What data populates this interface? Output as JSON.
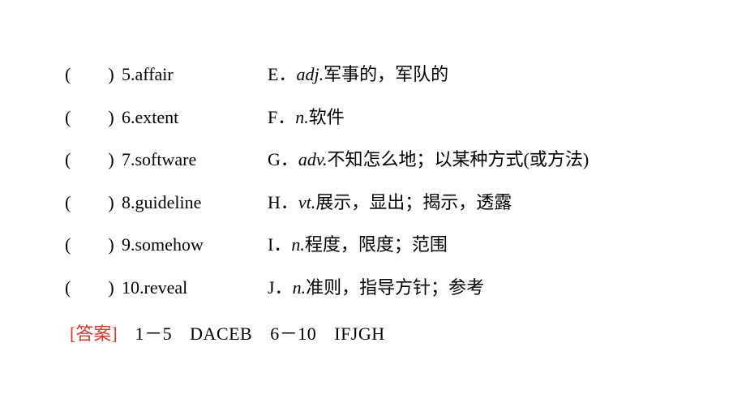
{
  "rows": [
    {
      "num": "5",
      "word": "affair",
      "marker": "E．",
      "pos": "adj.",
      "def": "军事的，军队的"
    },
    {
      "num": "6",
      "word": "extent",
      "marker": "F．",
      "pos": "n.",
      "def": "软件"
    },
    {
      "num": "7",
      "word": "software",
      "marker": "G．",
      "pos": "adv.",
      "def": "不知怎么地；以某种方式(或方法)"
    },
    {
      "num": "8",
      "word": "guideline",
      "marker": "H．",
      "pos": "vt.",
      "def": "展示，显出；揭示，透露"
    },
    {
      "num": "9",
      "word": "somehow",
      "marker": "I．",
      "pos": "n.",
      "def": "程度，限度；范围"
    },
    {
      "num": "10",
      "word": "reveal",
      "marker": "J．",
      "pos": "n.",
      "def": "准则，指导方针；参考"
    }
  ],
  "answer": {
    "label": "[答案]",
    "range1": "1－5",
    "letters1": "DACEB",
    "range2": "6－10",
    "letters2": "IFJGH"
  },
  "colors": {
    "text": "#000000",
    "answer_label": "#d9372a",
    "background": "#ffffff"
  }
}
